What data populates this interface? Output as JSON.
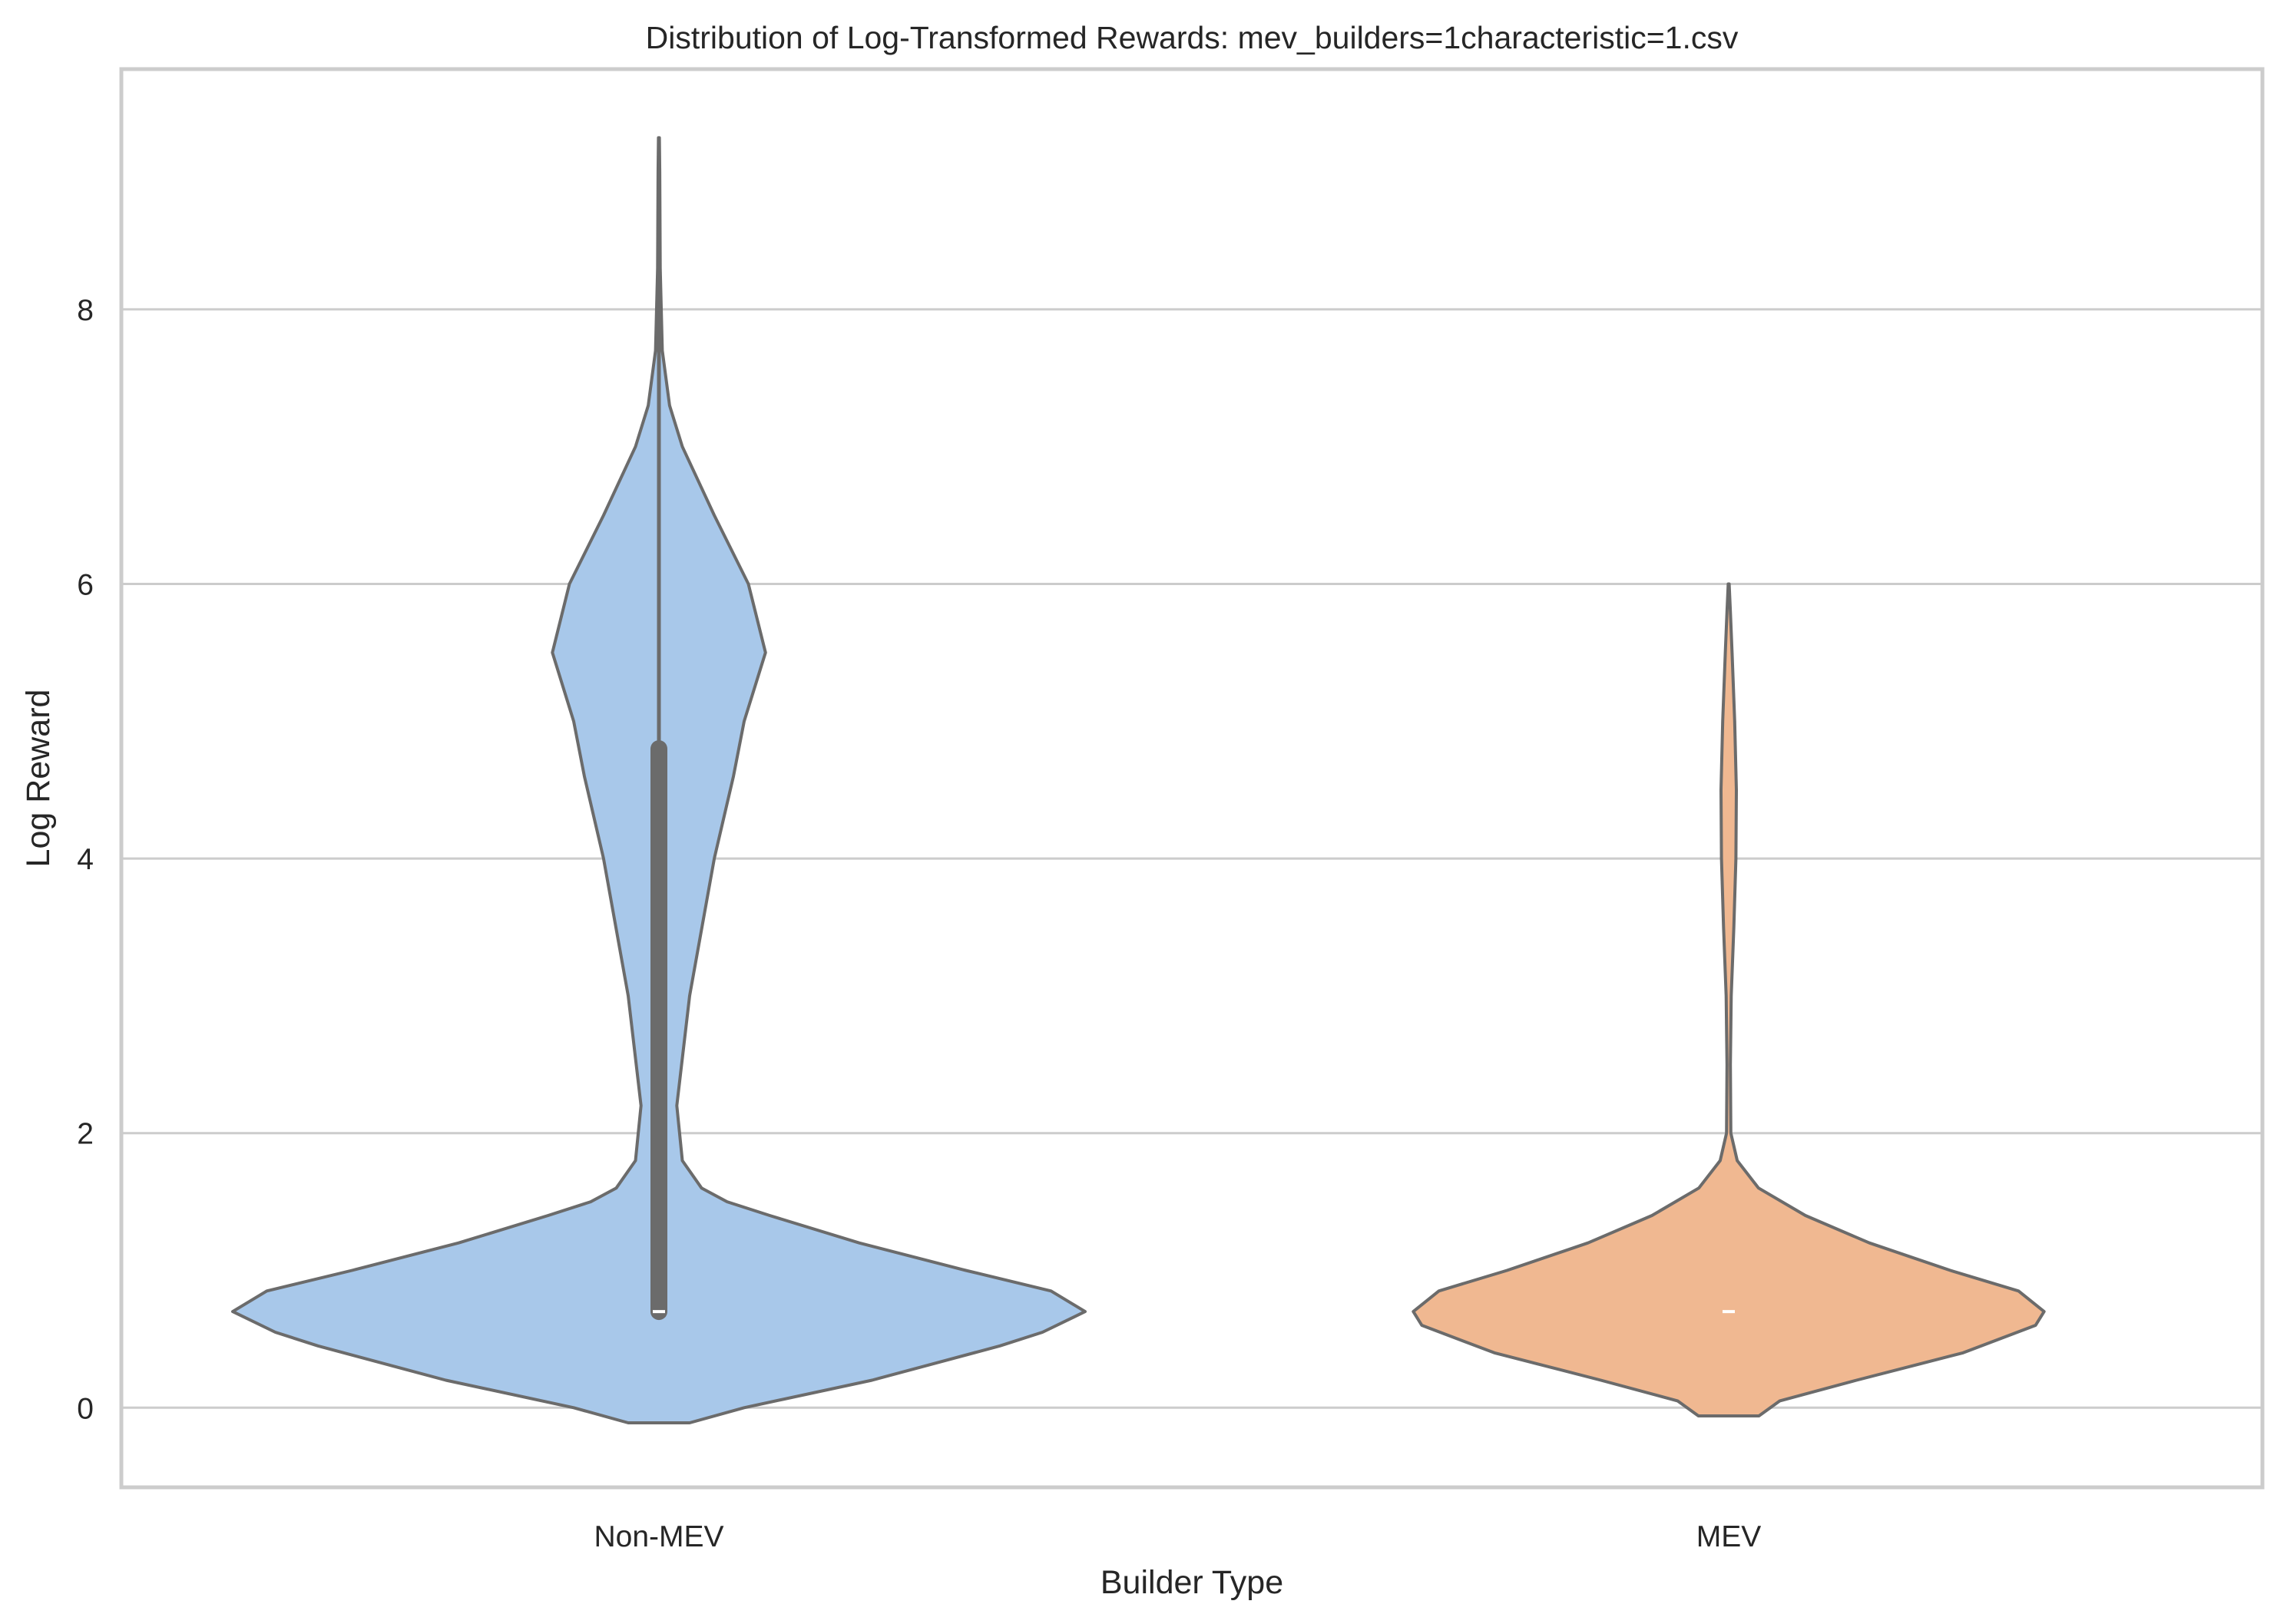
{
  "chart_data": {
    "type": "violin",
    "title": "Distribution of Log-Transformed Rewards: mev_builders=1characteristic=1.csv",
    "xlabel": "Builder Type",
    "ylabel": "Log Reward",
    "categories": [
      "Non-MEV",
      "MEV"
    ],
    "ylim": [
      -0.58,
      9.75
    ],
    "yticks": [
      0,
      2,
      4,
      6,
      8
    ],
    "grid": "horizontal",
    "colors": {
      "Non-MEV": "#a8c8ea",
      "MEV": "#f0b891",
      "outline": "#6b6b6b",
      "grid": "#cccccc"
    },
    "series": [
      {
        "name": "Non-MEV",
        "min": -0.11,
        "max": 9.25,
        "q1": 0.7,
        "median": 0.7,
        "q3": 4.8,
        "whisker_low": 0.65,
        "whisker_high": 9.25,
        "density_profile": [
          [
            -0.11,
            0.072
          ],
          [
            0.0,
            0.2
          ],
          [
            0.2,
            0.5
          ],
          [
            0.45,
            0.8
          ],
          [
            0.55,
            0.9
          ],
          [
            0.7,
            1.0
          ],
          [
            0.85,
            0.92
          ],
          [
            1.0,
            0.72
          ],
          [
            1.2,
            0.47
          ],
          [
            1.4,
            0.26
          ],
          [
            1.5,
            0.16
          ],
          [
            1.6,
            0.1
          ],
          [
            1.8,
            0.055
          ],
          [
            2.2,
            0.042
          ],
          [
            3.0,
            0.072
          ],
          [
            4.0,
            0.13
          ],
          [
            4.6,
            0.175
          ],
          [
            5.0,
            0.2
          ],
          [
            5.5,
            0.25
          ],
          [
            6.0,
            0.21
          ],
          [
            6.5,
            0.13
          ],
          [
            7.0,
            0.055
          ],
          [
            7.3,
            0.025
          ],
          [
            7.7,
            0.008
          ],
          [
            8.3,
            0.003
          ],
          [
            9.0,
            0.002
          ],
          [
            9.25,
            0.001
          ]
        ]
      },
      {
        "name": "MEV",
        "min": -0.06,
        "max": 6.0,
        "median": 0.7,
        "density_profile": [
          [
            -0.06,
            0.071
          ],
          [
            0.05,
            0.12
          ],
          [
            0.2,
            0.3
          ],
          [
            0.4,
            0.55
          ],
          [
            0.6,
            0.72
          ],
          [
            0.7,
            0.74
          ],
          [
            0.85,
            0.68
          ],
          [
            1.0,
            0.52
          ],
          [
            1.2,
            0.33
          ],
          [
            1.4,
            0.18
          ],
          [
            1.6,
            0.07
          ],
          [
            1.8,
            0.02
          ],
          [
            2.0,
            0.005
          ],
          [
            2.5,
            0.004
          ],
          [
            3.0,
            0.006
          ],
          [
            3.5,
            0.012
          ],
          [
            4.0,
            0.017
          ],
          [
            4.5,
            0.018
          ],
          [
            5.0,
            0.014
          ],
          [
            5.5,
            0.008
          ],
          [
            5.8,
            0.004
          ],
          [
            6.0,
            0.001
          ]
        ]
      }
    ]
  }
}
